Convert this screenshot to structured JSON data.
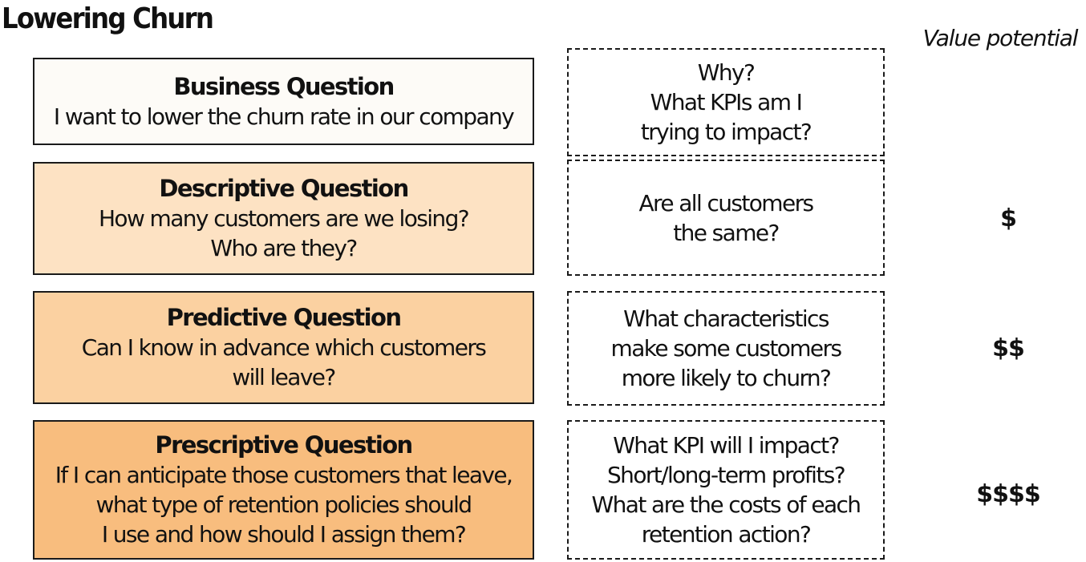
{
  "title": "Lowering Churn",
  "value_header": "Value potential",
  "colors": {
    "business_fill": "#fdfbf7",
    "descriptive_fill": "#fde2c3",
    "predictive_fill": "#fbd1a1",
    "prescriptive_fill": "#f8bd7e",
    "border": "#1a1a1a"
  },
  "rows": [
    {
      "question_title": "Business Question",
      "question_lines": [
        "I want to lower the churn rate in our company"
      ],
      "prompt_lines": [
        "Why?",
        "What KPIs am I",
        "trying to impact?"
      ],
      "value": ""
    },
    {
      "question_title": "Descriptive Question",
      "question_lines": [
        "How many customers are we losing?",
        "Who are they?"
      ],
      "prompt_lines": [
        "Are all customers",
        "the same?"
      ],
      "value": "$"
    },
    {
      "question_title": "Predictive Question",
      "question_lines": [
        "Can I know in advance which customers",
        "will leave?"
      ],
      "prompt_lines": [
        "What characteristics",
        "make some customers",
        "more likely to churn?"
      ],
      "value": "$$"
    },
    {
      "question_title": "Prescriptive Question",
      "question_lines": [
        "If I can anticipate those customers that leave,",
        "what type of retention policies should",
        "I use and how should I assign them?"
      ],
      "prompt_lines": [
        "What KPI will I impact?",
        "Short/long-term profits?",
        "What are the costs of each",
        "retention action?"
      ],
      "value": "$$$$"
    }
  ]
}
